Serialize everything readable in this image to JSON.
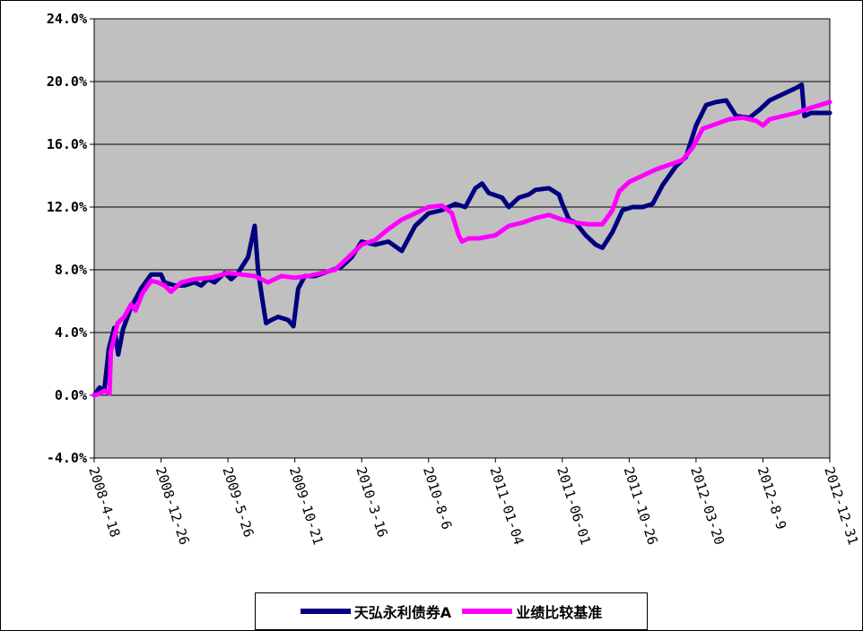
{
  "chart_data": {
    "type": "line",
    "title": "",
    "xlabel": "",
    "ylabel": "",
    "ylim": [
      -4.0,
      24.0
    ],
    "yticks": [
      "-4.0%",
      "0.0%",
      "4.0%",
      "8.0%",
      "12.0%",
      "16.0%",
      "20.0%",
      "24.0%"
    ],
    "ytick_values": [
      -4,
      0,
      4,
      8,
      12,
      16,
      20,
      24
    ],
    "xticks": [
      "2008-4-18",
      "2008-12-26",
      "2009-5-26",
      "2009-10-21",
      "2010-3-16",
      "2010-8-6",
      "2011-01-04",
      "2011-06-01",
      "2011-10-26",
      "2012-03-20",
      "2012-8-9",
      "2012-12-31"
    ],
    "grid": true,
    "plot_background": "#c0c0c0",
    "legend_position": "bottom",
    "series": [
      {
        "name": "天弘永利债券A",
        "color": "#000080",
        "points": [
          [
            0,
            0
          ],
          [
            0.08,
            0.5
          ],
          [
            0.15,
            0.3
          ],
          [
            0.22,
            3.0
          ],
          [
            0.3,
            4.3
          ],
          [
            0.36,
            2.6
          ],
          [
            0.43,
            4.2
          ],
          [
            0.55,
            5.6
          ],
          [
            0.7,
            6.8
          ],
          [
            0.85,
            7.7
          ],
          [
            1.0,
            7.7
          ],
          [
            1.05,
            7.2
          ],
          [
            1.2,
            7.0
          ],
          [
            1.35,
            7.0
          ],
          [
            1.5,
            7.2
          ],
          [
            1.6,
            7.0
          ],
          [
            1.7,
            7.4
          ],
          [
            1.8,
            7.2
          ],
          [
            1.95,
            7.8
          ],
          [
            2.05,
            7.4
          ],
          [
            2.15,
            7.8
          ],
          [
            2.3,
            8.8
          ],
          [
            2.4,
            10.8
          ],
          [
            2.45,
            8.0
          ],
          [
            2.5,
            6.5
          ],
          [
            2.57,
            4.6
          ],
          [
            2.65,
            4.8
          ],
          [
            2.75,
            5.0
          ],
          [
            2.9,
            4.8
          ],
          [
            2.98,
            4.4
          ],
          [
            3.05,
            6.8
          ],
          [
            3.15,
            7.6
          ],
          [
            3.3,
            7.6
          ],
          [
            3.5,
            7.9
          ],
          [
            3.7,
            8.2
          ],
          [
            3.85,
            8.8
          ],
          [
            4.0,
            9.8
          ],
          [
            4.2,
            9.6
          ],
          [
            4.4,
            9.8
          ],
          [
            4.6,
            9.2
          ],
          [
            4.8,
            10.8
          ],
          [
            5.0,
            11.6
          ],
          [
            5.2,
            11.8
          ],
          [
            5.4,
            12.2
          ],
          [
            5.55,
            12.0
          ],
          [
            5.7,
            13.2
          ],
          [
            5.8,
            13.5
          ],
          [
            5.9,
            12.9
          ],
          [
            6.1,
            12.6
          ],
          [
            6.2,
            12.0
          ],
          [
            6.35,
            12.6
          ],
          [
            6.5,
            12.8
          ],
          [
            6.6,
            13.1
          ],
          [
            6.8,
            13.2
          ],
          [
            6.95,
            12.8
          ],
          [
            7.0,
            12.2
          ],
          [
            7.1,
            11.2
          ],
          [
            7.2,
            11.0
          ],
          [
            7.35,
            10.2
          ],
          [
            7.5,
            9.6
          ],
          [
            7.6,
            9.4
          ],
          [
            7.75,
            10.4
          ],
          [
            7.9,
            11.8
          ],
          [
            8.05,
            12.0
          ],
          [
            8.2,
            12.0
          ],
          [
            8.35,
            12.2
          ],
          [
            8.5,
            13.4
          ],
          [
            8.7,
            14.6
          ],
          [
            8.85,
            15.2
          ],
          [
            9.0,
            17.2
          ],
          [
            9.15,
            18.5
          ],
          [
            9.3,
            18.7
          ],
          [
            9.45,
            18.8
          ],
          [
            9.6,
            17.8
          ],
          [
            9.8,
            17.7
          ],
          [
            9.95,
            18.2
          ],
          [
            10.1,
            18.8
          ],
          [
            10.3,
            19.2
          ],
          [
            10.5,
            19.6
          ],
          [
            10.58,
            19.8
          ],
          [
            10.62,
            17.8
          ],
          [
            10.72,
            18.0
          ],
          [
            11.0,
            18.0
          ]
        ]
      },
      {
        "name": "业绩比较基准",
        "color": "#ff00ff",
        "points": [
          [
            0,
            0
          ],
          [
            0.08,
            0.1
          ],
          [
            0.15,
            0.3
          ],
          [
            0.23,
            0.1
          ],
          [
            0.25,
            2.8
          ],
          [
            0.35,
            4.6
          ],
          [
            0.45,
            5.0
          ],
          [
            0.55,
            5.8
          ],
          [
            0.62,
            5.4
          ],
          [
            0.72,
            6.5
          ],
          [
            0.85,
            7.3
          ],
          [
            0.95,
            7.2
          ],
          [
            1.05,
            7.0
          ],
          [
            1.15,
            6.6
          ],
          [
            1.3,
            7.2
          ],
          [
            1.5,
            7.4
          ],
          [
            1.75,
            7.5
          ],
          [
            2.0,
            7.8
          ],
          [
            2.2,
            7.7
          ],
          [
            2.4,
            7.6
          ],
          [
            2.6,
            7.2
          ],
          [
            2.8,
            7.6
          ],
          [
            3.0,
            7.5
          ],
          [
            3.2,
            7.6
          ],
          [
            3.4,
            7.8
          ],
          [
            3.6,
            8.0
          ],
          [
            3.8,
            8.8
          ],
          [
            4.0,
            9.6
          ],
          [
            4.2,
            9.9
          ],
          [
            4.4,
            10.6
          ],
          [
            4.6,
            11.2
          ],
          [
            4.8,
            11.6
          ],
          [
            5.0,
            12.0
          ],
          [
            5.2,
            12.1
          ],
          [
            5.35,
            11.6
          ],
          [
            5.45,
            10.2
          ],
          [
            5.5,
            9.8
          ],
          [
            5.6,
            10.0
          ],
          [
            5.75,
            10.0
          ],
          [
            6.0,
            10.2
          ],
          [
            6.2,
            10.8
          ],
          [
            6.4,
            11.0
          ],
          [
            6.6,
            11.3
          ],
          [
            6.8,
            11.5
          ],
          [
            7.0,
            11.2
          ],
          [
            7.2,
            11.0
          ],
          [
            7.4,
            10.9
          ],
          [
            7.6,
            10.9
          ],
          [
            7.75,
            11.8
          ],
          [
            7.85,
            13.0
          ],
          [
            8.0,
            13.6
          ],
          [
            8.2,
            14.0
          ],
          [
            8.4,
            14.4
          ],
          [
            8.6,
            14.7
          ],
          [
            8.8,
            15.0
          ],
          [
            8.95,
            15.8
          ],
          [
            9.1,
            17.0
          ],
          [
            9.3,
            17.3
          ],
          [
            9.5,
            17.6
          ],
          [
            9.7,
            17.7
          ],
          [
            9.9,
            17.5
          ],
          [
            10.0,
            17.2
          ],
          [
            10.1,
            17.6
          ],
          [
            10.3,
            17.8
          ],
          [
            10.5,
            18.0
          ],
          [
            10.7,
            18.3
          ],
          [
            11.0,
            18.7
          ]
        ]
      }
    ]
  }
}
